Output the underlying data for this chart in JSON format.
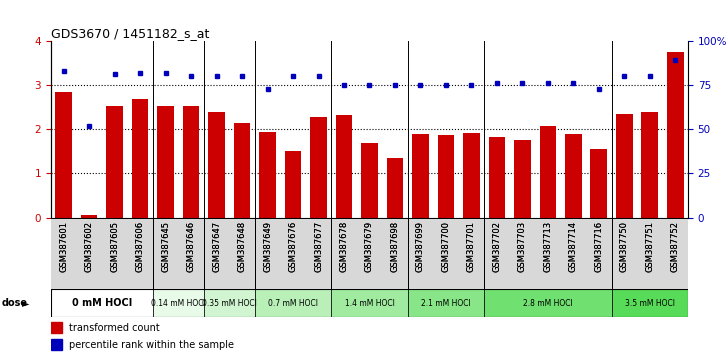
{
  "title": "GDS3670 / 1451182_s_at",
  "samples": [
    "GSM387601",
    "GSM387602",
    "GSM387605",
    "GSM387606",
    "GSM387645",
    "GSM387646",
    "GSM387647",
    "GSM387648",
    "GSM387649",
    "GSM387676",
    "GSM387677",
    "GSM387678",
    "GSM387679",
    "GSM387698",
    "GSM387699",
    "GSM387700",
    "GSM387701",
    "GSM387702",
    "GSM387703",
    "GSM387713",
    "GSM387714",
    "GSM387716",
    "GSM387750",
    "GSM387751",
    "GSM387752"
  ],
  "transformed_count": [
    2.85,
    0.05,
    2.52,
    2.68,
    2.52,
    2.52,
    2.4,
    2.15,
    1.93,
    1.5,
    2.28,
    2.32,
    1.68,
    1.35,
    1.9,
    1.88,
    1.92,
    1.82,
    1.75,
    2.08,
    1.9,
    1.55,
    2.35,
    2.38,
    3.75
  ],
  "percentile_rank": [
    83,
    52,
    81,
    82,
    82,
    80,
    80,
    80,
    73,
    80,
    80,
    75,
    75,
    75,
    75,
    75,
    75,
    76,
    76,
    76,
    76,
    73,
    80,
    80,
    89
  ],
  "dose_groups": [
    {
      "label": "0 mM HOCl",
      "start": 0,
      "end": 4,
      "color": "#ffffff"
    },
    {
      "label": "0.14 mM HOCl",
      "start": 4,
      "end": 6,
      "color": "#e8fae8"
    },
    {
      "label": "0.35 mM HOCl",
      "start": 6,
      "end": 8,
      "color": "#d0f5d0"
    },
    {
      "label": "0.7 mM HOCl",
      "start": 8,
      "end": 11,
      "color": "#b8f0b8"
    },
    {
      "label": "1.4 mM HOCl",
      "start": 11,
      "end": 14,
      "color": "#a0eba0"
    },
    {
      "label": "2.1 mM HOCl",
      "start": 14,
      "end": 17,
      "color": "#88e688"
    },
    {
      "label": "2.8 mM HOCl",
      "start": 17,
      "end": 22,
      "color": "#70e070"
    },
    {
      "label": "3.5 mM HOCl",
      "start": 22,
      "end": 25,
      "color": "#58db58"
    }
  ],
  "bar_color": "#cc0000",
  "dot_color": "#0000bb",
  "legend_bar_label": "transformed count",
  "legend_dot_label": "percentile rank within the sample"
}
